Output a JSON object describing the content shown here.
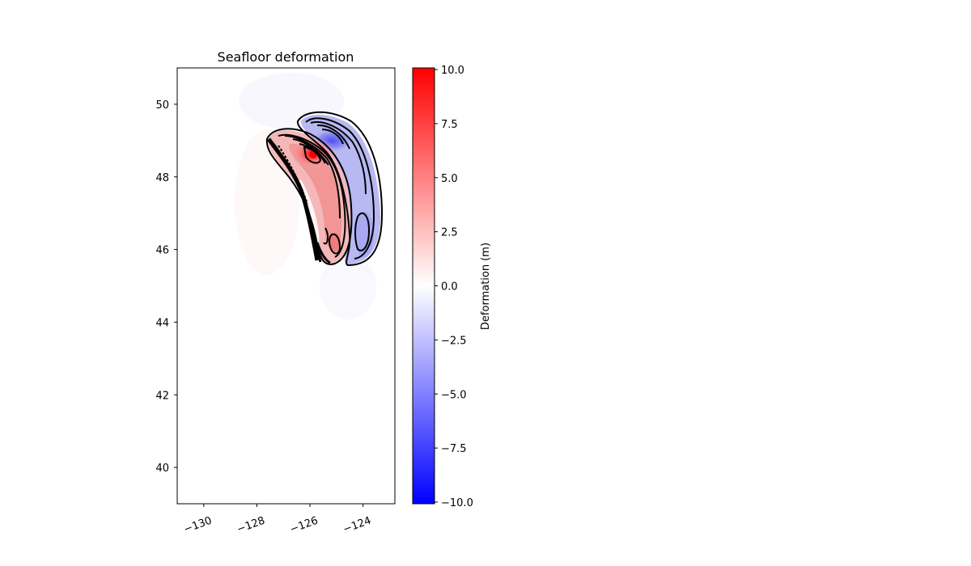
{
  "chart_data": {
    "type": "heatmap",
    "title": "Seafloor deformation",
    "xlabel": "",
    "ylabel": "",
    "xlim": [
      -131,
      -122.8
    ],
    "ylim": [
      39,
      51
    ],
    "x_ticks": [
      -130,
      -128,
      -126,
      -124
    ],
    "x_tick_labels": [
      "−130",
      "−128",
      "−126",
      "−124"
    ],
    "y_ticks": [
      40,
      42,
      44,
      46,
      48,
      50
    ],
    "y_tick_labels": [
      "40",
      "42",
      "44",
      "46",
      "48",
      "50"
    ],
    "colormap": "bwr",
    "colorbar": {
      "label": "Deformation (m)",
      "range": [
        -10,
        10
      ],
      "ticks": [
        10,
        7.5,
        5,
        2.5,
        0,
        -2.5,
        -5,
        -7.5,
        -10
      ],
      "tick_labels": [
        "10.0",
        "7.5",
        "5.0",
        "2.5",
        "0.0",
        "−2.5",
        "−5.0",
        "−7.5",
        "−10.0"
      ]
    },
    "features": {
      "uplift_peak": {
        "lon": -125.8,
        "lat": 48.6,
        "value": 10
      },
      "uplift_secondary_peak": {
        "lon": -124.9,
        "lat": 46.1,
        "value": 6
      },
      "subsidence_peak": {
        "lon": -124.8,
        "lat": 48.9,
        "value": -8
      },
      "subsidence_south_lobe": {
        "lon": -123.9,
        "lat": 46.7,
        "value": -4
      }
    },
    "contours": true,
    "grid": false
  }
}
